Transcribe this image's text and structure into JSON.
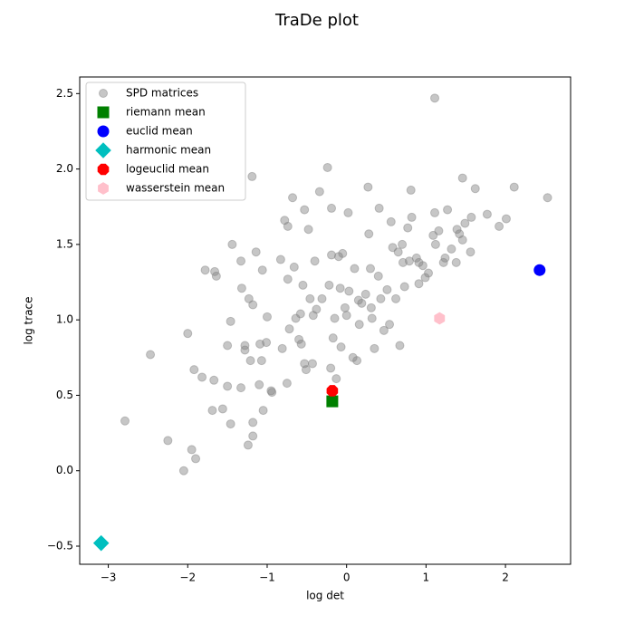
{
  "chart_data": {
    "type": "scatter",
    "title": "TraDe plot",
    "x_label": "log det",
    "y_label": "log trace",
    "xlim": [
      -3.36,
      2.82
    ],
    "ylim": [
      -0.62,
      2.61
    ],
    "xticks": [
      {
        "value": -3,
        "label": "−3"
      },
      {
        "value": -2,
        "label": "−2"
      },
      {
        "value": -1,
        "label": "−1"
      },
      0,
      1,
      2
    ],
    "yticks": [
      {
        "value": -0.5,
        "label": "−0.5"
      },
      {
        "value": 0,
        "label": "0.0"
      },
      0.5,
      {
        "value": 1,
        "label": "1.0"
      },
      1.5,
      {
        "value": 2,
        "label": "2.0"
      },
      2.5
    ],
    "grid": false,
    "legend": "upper left",
    "series": [
      {
        "name": "SPD matrices",
        "color": "#808080",
        "marker": "circle",
        "alpha": 0.45,
        "x": [
          1.11,
          2.53,
          -2.79,
          -2.47,
          -2.25,
          -2.05,
          -1.95,
          -1.9,
          -2.0,
          -1.92,
          -1.82,
          -1.78,
          -1.66,
          -1.64,
          -1.67,
          -1.69,
          -1.56,
          -1.5,
          -1.5,
          -1.46,
          -1.44,
          -1.46,
          -1.33,
          -1.32,
          -1.33,
          -1.28,
          -1.28,
          -1.24,
          -1.23,
          -1.21,
          -1.19,
          -1.18,
          -1.18,
          -1.18,
          -1.14,
          -1.1,
          -1.09,
          -1.05,
          -1.06,
          -1.01,
          -1.0,
          -0.95,
          -0.94,
          -1.07,
          -0.81,
          -0.83,
          -0.78,
          -0.74,
          -0.75,
          -0.74,
          -0.72,
          -0.68,
          -0.66,
          -0.64,
          -0.6,
          -0.58,
          -0.57,
          -0.55,
          -0.53,
          -0.53,
          -0.51,
          -0.48,
          -0.46,
          -0.43,
          -0.42,
          -0.4,
          -0.38,
          -0.34,
          -0.31,
          -0.24,
          -0.22,
          -0.2,
          -0.19,
          -0.19,
          -0.17,
          -0.15,
          -0.13,
          -0.1,
          -0.08,
          -0.07,
          -0.05,
          -0.02,
          0.0,
          0.02,
          0.03,
          0.08,
          0.1,
          0.13,
          0.15,
          0.16,
          0.19,
          0.24,
          0.27,
          0.28,
          0.3,
          0.31,
          0.32,
          0.35,
          0.4,
          0.41,
          0.43,
          0.47,
          0.51,
          0.54,
          0.56,
          0.58,
          0.62,
          0.65,
          0.67,
          0.7,
          0.71,
          0.73,
          0.77,
          0.79,
          0.81,
          0.82,
          0.88,
          0.91,
          0.91,
          0.96,
          0.99,
          1.03,
          1.09,
          1.11,
          1.12,
          1.16,
          1.22,
          1.24,
          1.27,
          1.32,
          1.38,
          1.39,
          1.42,
          1.46,
          1.46,
          1.49,
          1.56,
          1.57,
          1.62,
          1.77,
          1.92,
          2.01,
          2.11
        ],
        "y": [
          2.47,
          1.81,
          0.33,
          0.77,
          0.2,
          0.0,
          0.14,
          0.08,
          0.91,
          0.67,
          0.62,
          1.33,
          1.32,
          1.29,
          0.6,
          0.4,
          0.41,
          0.83,
          0.56,
          0.99,
          1.5,
          0.31,
          1.39,
          1.21,
          0.55,
          0.83,
          0.8,
          0.17,
          1.14,
          0.73,
          1.95,
          1.1,
          0.32,
          0.23,
          1.45,
          0.57,
          0.84,
          0.4,
          1.33,
          0.85,
          1.02,
          0.53,
          0.52,
          0.73,
          0.81,
          1.4,
          1.66,
          1.62,
          0.58,
          1.27,
          0.94,
          1.81,
          1.35,
          1.01,
          0.87,
          1.04,
          0.84,
          1.23,
          1.73,
          0.71,
          0.67,
          1.6,
          1.14,
          0.71,
          1.03,
          1.39,
          1.07,
          1.85,
          1.14,
          2.01,
          1.23,
          0.68,
          1.74,
          1.43,
          0.88,
          1.01,
          0.61,
          1.42,
          1.21,
          0.82,
          1.44,
          1.08,
          1.03,
          1.71,
          1.19,
          0.75,
          1.34,
          0.73,
          1.13,
          0.97,
          1.11,
          1.17,
          1.88,
          1.57,
          1.34,
          1.08,
          1.01,
          0.81,
          1.29,
          1.74,
          1.14,
          0.93,
          1.2,
          0.97,
          1.65,
          1.48,
          1.14,
          1.45,
          0.83,
          1.5,
          1.38,
          1.22,
          1.61,
          1.39,
          1.86,
          1.68,
          1.41,
          1.24,
          1.38,
          1.36,
          1.28,
          1.31,
          1.56,
          1.71,
          1.5,
          1.59,
          1.38,
          1.41,
          1.73,
          1.47,
          1.38,
          1.6,
          1.57,
          1.53,
          1.94,
          1.64,
          1.45,
          1.68,
          1.87,
          1.7,
          1.62,
          1.67,
          1.88
        ]
      },
      {
        "name": "riemann mean",
        "color": "#008000",
        "marker": "square",
        "x": [
          -0.18
        ],
        "y": [
          0.46
        ]
      },
      {
        "name": "euclid mean",
        "color": "#0000ff",
        "marker": "circle",
        "x": [
          2.43
        ],
        "y": [
          1.33
        ]
      },
      {
        "name": "harmonic mean",
        "color": "#00bfbf",
        "marker": "diamond",
        "x": [
          -3.09
        ],
        "y": [
          -0.48
        ]
      },
      {
        "name": "logeuclid mean",
        "color": "#ff0000",
        "marker": "octagon",
        "x": [
          -0.18
        ],
        "y": [
          0.53
        ]
      },
      {
        "name": "wasserstein mean",
        "color": "#ffc0cb",
        "marker": "hexagon",
        "x": [
          1.17
        ],
        "y": [
          1.01
        ]
      }
    ]
  }
}
